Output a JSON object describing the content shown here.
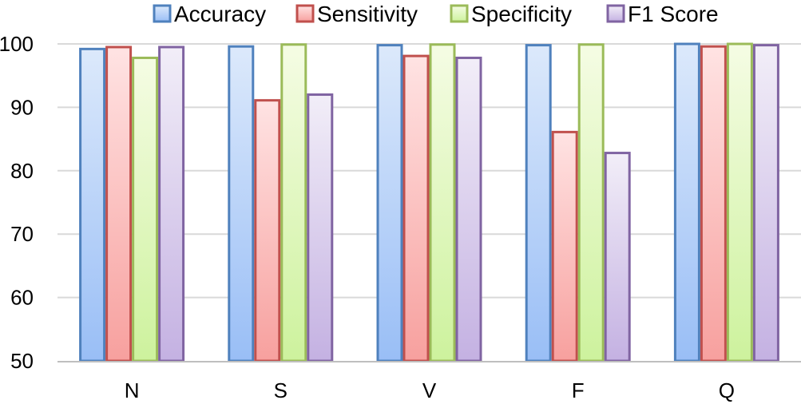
{
  "chart_data": {
    "type": "bar",
    "categories": [
      "N",
      "S",
      "V",
      "F",
      "Q"
    ],
    "series": [
      {
        "name": "Accuracy",
        "values": [
          99.2,
          99.6,
          99.8,
          99.8,
          100.0
        ],
        "color": "#4f81bd",
        "grad_top": "#dce9fb",
        "grad_bottom": "#99bef6"
      },
      {
        "name": "Sensitivity",
        "values": [
          99.5,
          91.1,
          98.1,
          86.1,
          99.6
        ],
        "color": "#c0504d",
        "grad_top": "#ffe3e3",
        "grad_bottom": "#f7a09e"
      },
      {
        "name": "Specificity",
        "values": [
          97.8,
          99.9,
          99.9,
          99.9,
          100.0
        ],
        "color": "#9bbb59",
        "grad_top": "#f5fce4",
        "grad_bottom": "#cdf29d"
      },
      {
        "name": "F1 Score",
        "values": [
          99.5,
          92.0,
          97.8,
          82.8,
          99.8
        ],
        "color": "#8064a2",
        "grad_top": "#f2eef8",
        "grad_bottom": "#c4b1e2"
      }
    ],
    "title": "",
    "xlabel": "",
    "ylabel": "",
    "ylim": [
      50,
      100
    ],
    "yticks": [
      "50",
      "60",
      "70",
      "80",
      "90",
      "100"
    ],
    "grid": true,
    "legend": "top"
  }
}
